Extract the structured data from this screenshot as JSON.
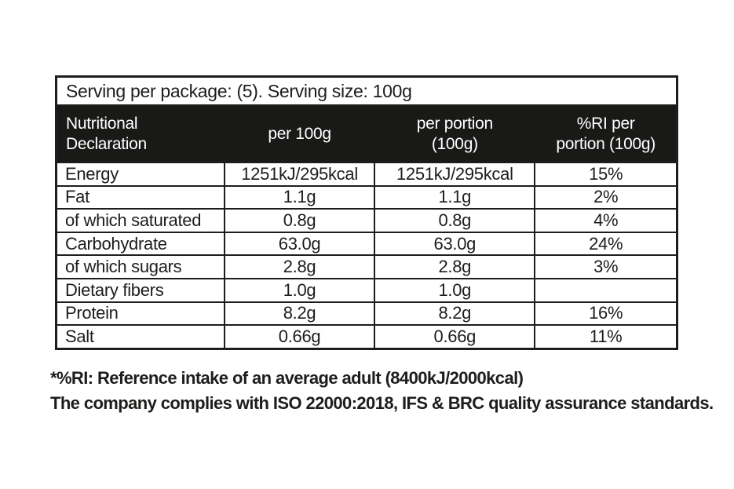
{
  "colors": {
    "ink": "#1d1d1b",
    "header_band_bg": "#191918",
    "header_band_text": "#ffffff",
    "page_bg": "#ffffff"
  },
  "table": {
    "serving_line": "Serving per package: (5). Serving size: 100g",
    "columns": [
      {
        "lines": [
          "Nutritional",
          "Declaration"
        ]
      },
      {
        "lines": [
          "per 100g"
        ]
      },
      {
        "lines": [
          "per portion",
          "(100g)"
        ]
      },
      {
        "lines": [
          "%RI per",
          "portion (100g)"
        ]
      }
    ],
    "rows": [
      {
        "label": "Energy",
        "per_100g": "1251kJ/295kcal",
        "per_portion": "1251kJ/295kcal",
        "ri_per_portion": "15%"
      },
      {
        "label": "Fat",
        "per_100g": "1.1g",
        "per_portion": "1.1g",
        "ri_per_portion": "2%"
      },
      {
        "label": "of which saturated",
        "per_100g": "0.8g",
        "per_portion": "0.8g",
        "ri_per_portion": "4%"
      },
      {
        "label": "Carbohydrate",
        "per_100g": "63.0g",
        "per_portion": "63.0g",
        "ri_per_portion": "24%"
      },
      {
        "label": "of which sugars",
        "per_100g": "2.8g",
        "per_portion": "2.8g",
        "ri_per_portion": "3%"
      },
      {
        "label": "Dietary fibers",
        "per_100g": "1.0g",
        "per_portion": "1.0g",
        "ri_per_portion": ""
      },
      {
        "label": "Protein",
        "per_100g": "8.2g",
        "per_portion": "8.2g",
        "ri_per_portion": "16%"
      },
      {
        "label": "Salt",
        "per_100g": "0.66g",
        "per_portion": "0.66g",
        "ri_per_portion": "11%"
      }
    ]
  },
  "footnotes": {
    "line1": "*%RI: Reference intake of an average adult (8400kJ/2000kcal)",
    "line2": "The company complies with ISO 22000:2018, IFS & BRC quality assurance standards."
  }
}
